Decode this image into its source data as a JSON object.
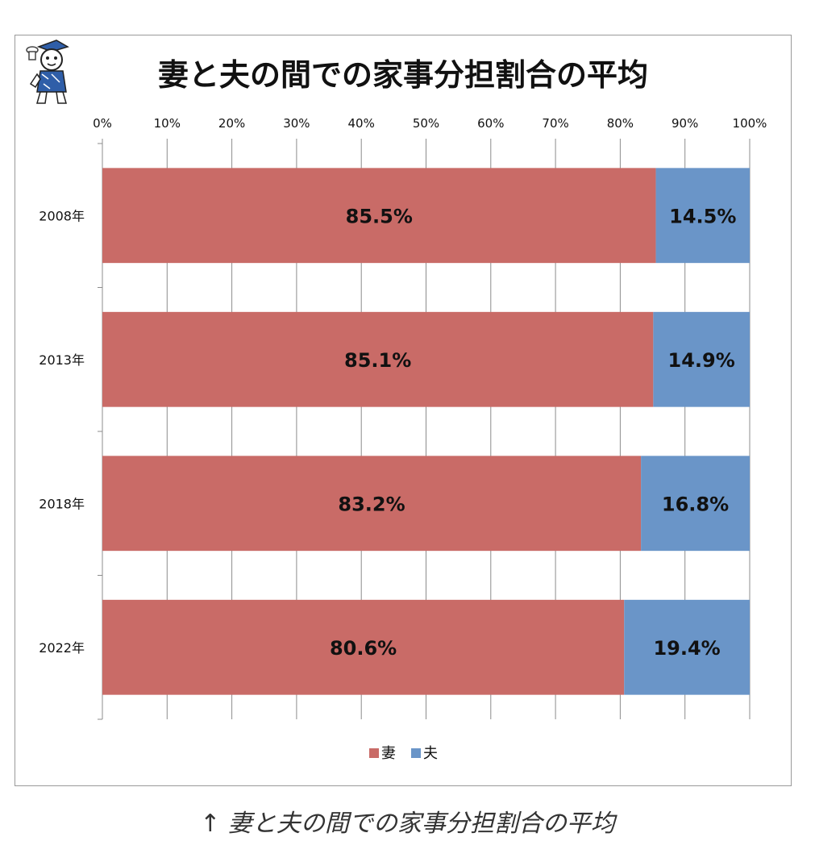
{
  "chart_data": {
    "type": "bar",
    "orientation": "horizontal-stacked-percent",
    "title": "妻と夫の間での家事分担割合の平均",
    "categories": [
      "2008年",
      "2013年",
      "2018年",
      "2022年"
    ],
    "series": [
      {
        "name": "妻",
        "values": [
          85.5,
          85.1,
          83.2,
          80.6
        ],
        "labels": [
          "85.5%",
          "85.1%",
          "83.2%",
          "80.6%"
        ],
        "color": "#c96b67"
      },
      {
        "name": "夫",
        "values": [
          14.5,
          14.9,
          16.8,
          19.4
        ],
        "labels": [
          "14.5%",
          "14.9%",
          "16.8%",
          "19.4%"
        ],
        "color": "#6a95c8"
      }
    ],
    "xlim": [
      0,
      100
    ],
    "x_ticks": [
      "0%",
      "10%",
      "20%",
      "30%",
      "40%",
      "50%",
      "60%",
      "70%",
      "80%",
      "90%",
      "100%"
    ],
    "grid": true,
    "legend_position": "bottom-center"
  },
  "caption": "↑ 妻と夫の間での家事分担割合の平均"
}
